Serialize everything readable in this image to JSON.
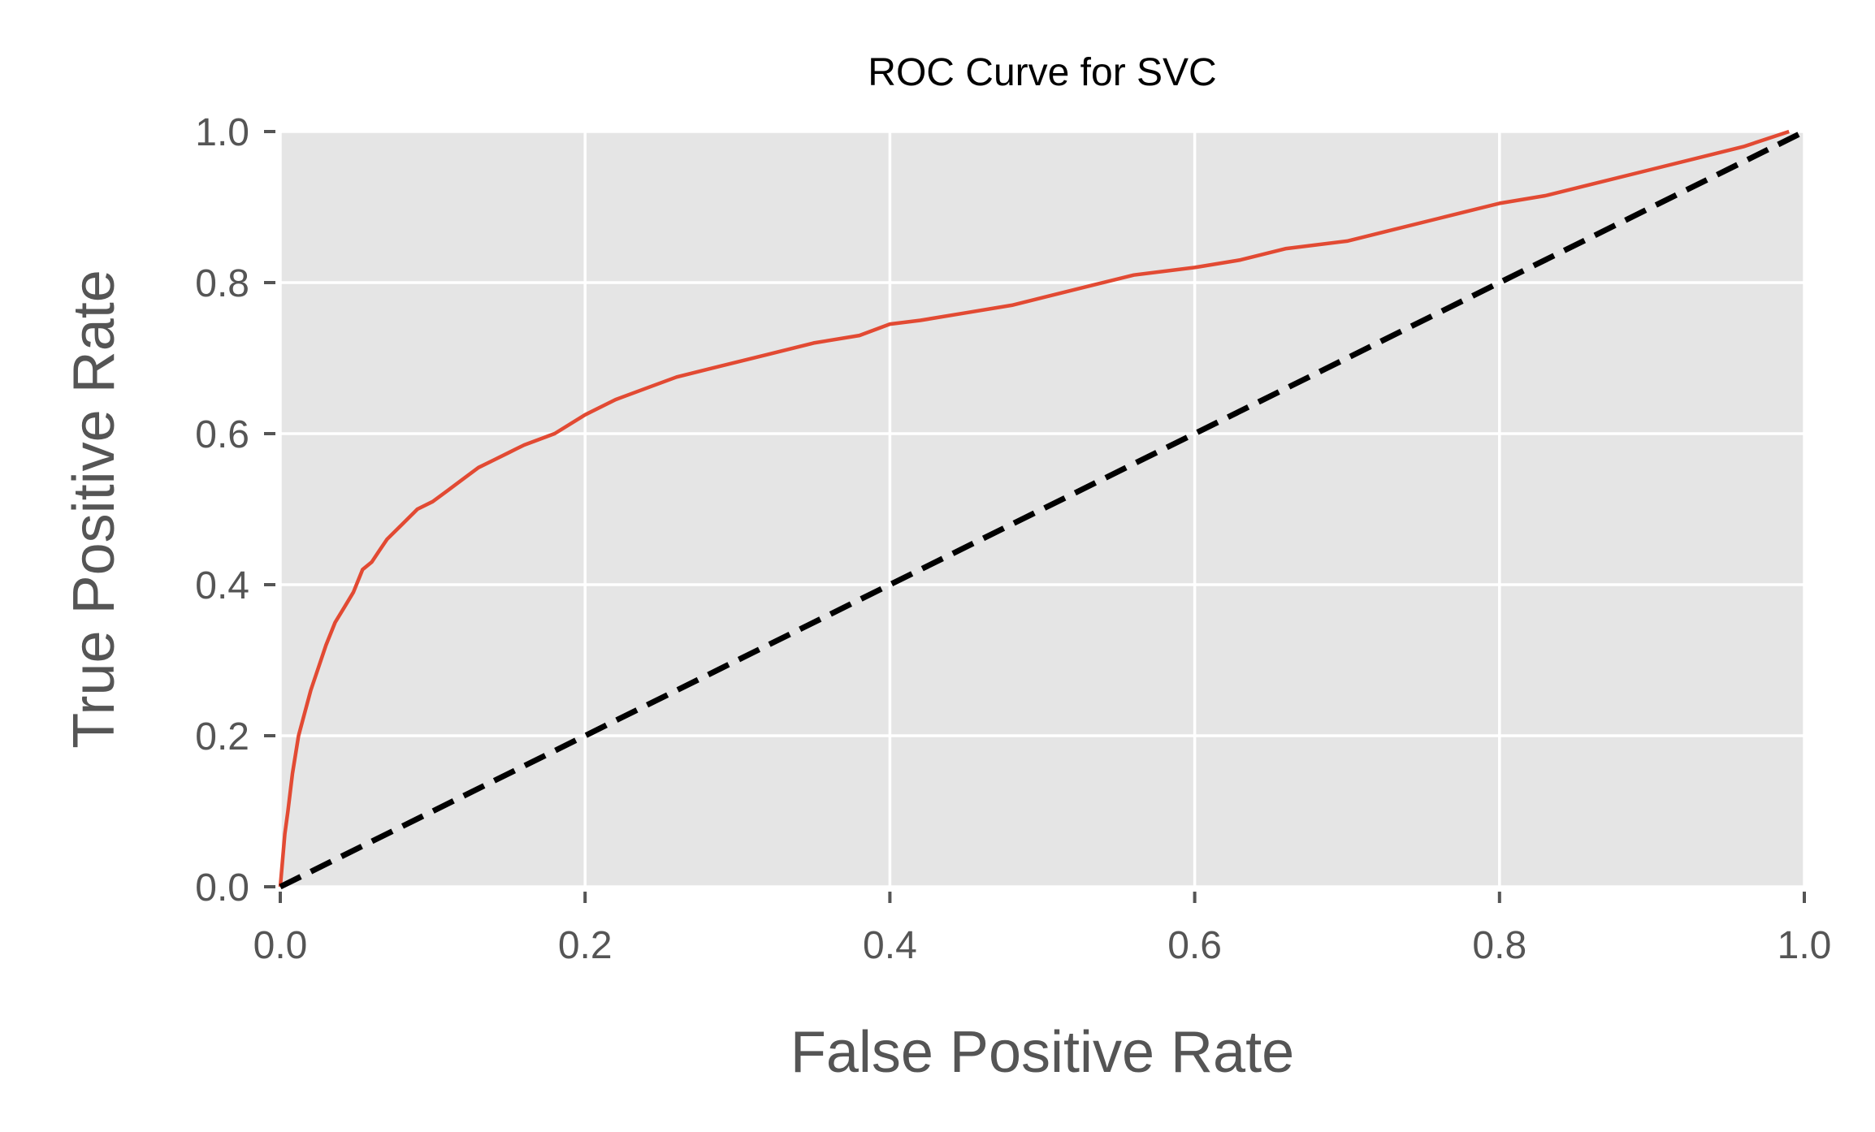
{
  "chart_data": {
    "type": "line",
    "title": "ROC Curve for SVC",
    "xlabel": "False Positive Rate",
    "ylabel": "True Positive Rate",
    "xlim": [
      0.0,
      1.0
    ],
    "ylim": [
      0.0,
      1.0
    ],
    "xticks": [
      "0.0",
      "0.2",
      "0.4",
      "0.6",
      "0.8",
      "1.0"
    ],
    "yticks": [
      "0.0",
      "0.2",
      "0.4",
      "0.6",
      "0.8",
      "1.0"
    ],
    "grid": true,
    "legend": "none",
    "colors": {
      "background": "#e5e5e5",
      "grid": "#ffffff",
      "roc": "#e24a33",
      "reference": "#000000"
    },
    "series": [
      {
        "style": "solid",
        "x": [
          0.0,
          0.003,
          0.005,
          0.008,
          0.012,
          0.016,
          0.02,
          0.025,
          0.03,
          0.036,
          0.042,
          0.048,
          0.054,
          0.06,
          0.065,
          0.07,
          0.08,
          0.09,
          0.1,
          0.11,
          0.12,
          0.13,
          0.14,
          0.15,
          0.16,
          0.18,
          0.2,
          0.22,
          0.24,
          0.26,
          0.28,
          0.3,
          0.32,
          0.35,
          0.38,
          0.4,
          0.42,
          0.45,
          0.48,
          0.5,
          0.53,
          0.56,
          0.6,
          0.63,
          0.66,
          0.7,
          0.73,
          0.76,
          0.8,
          0.83,
          0.86,
          0.9,
          0.93,
          0.96,
          0.99
        ],
        "y": [
          0.0,
          0.07,
          0.1,
          0.15,
          0.2,
          0.23,
          0.26,
          0.29,
          0.32,
          0.35,
          0.37,
          0.39,
          0.42,
          0.43,
          0.445,
          0.46,
          0.48,
          0.5,
          0.51,
          0.525,
          0.54,
          0.555,
          0.565,
          0.575,
          0.585,
          0.6,
          0.625,
          0.645,
          0.66,
          0.675,
          0.685,
          0.695,
          0.705,
          0.72,
          0.73,
          0.745,
          0.75,
          0.76,
          0.77,
          0.78,
          0.795,
          0.81,
          0.82,
          0.83,
          0.845,
          0.855,
          0.87,
          0.885,
          0.905,
          0.915,
          0.93,
          0.95,
          0.965,
          0.98,
          1.0
        ]
      },
      {
        "style": "dashed",
        "x": [
          0.0,
          1.0
        ],
        "y": [
          0.0,
          1.0
        ]
      }
    ]
  }
}
